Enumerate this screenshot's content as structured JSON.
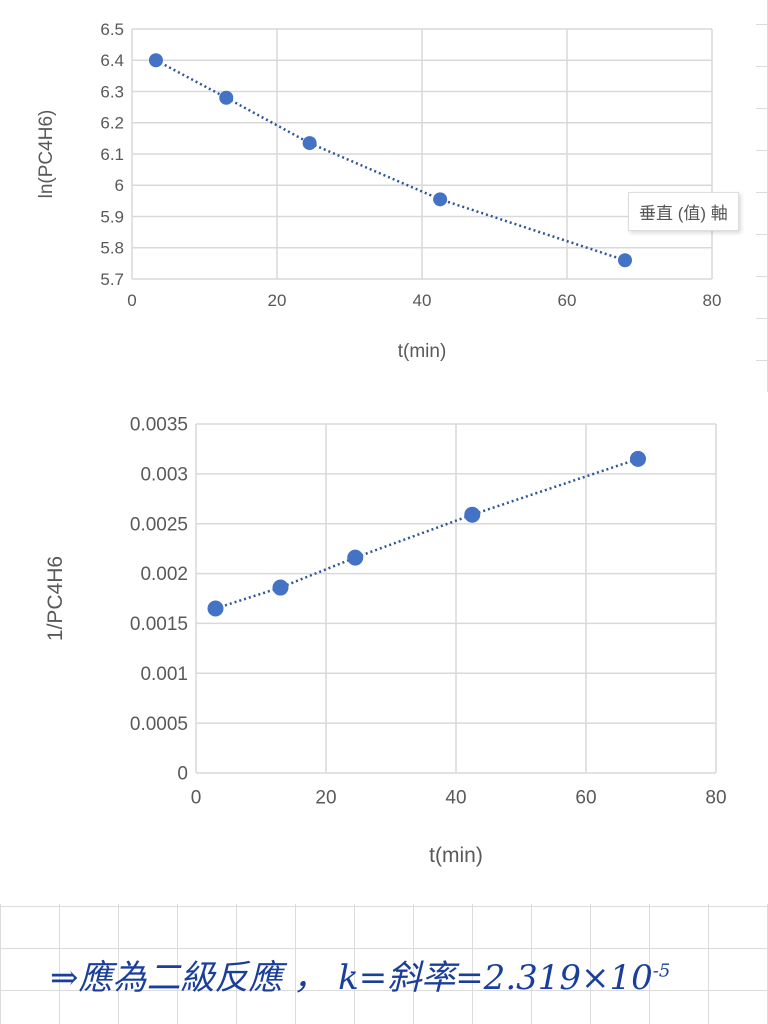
{
  "chart_data": [
    {
      "type": "scatter",
      "title": "",
      "xlabel": "t(min)",
      "ylabel": "ln(PC4H6)",
      "xlim": [
        0,
        80
      ],
      "ylim": [
        5.7,
        6.5
      ],
      "xticks": [
        "0",
        "20",
        "40",
        "60",
        "80"
      ],
      "yticks": [
        "5.7",
        "5.8",
        "5.9",
        "6",
        "6.1",
        "6.2",
        "6.3",
        "6.4",
        "6.5"
      ],
      "x": [
        3.3,
        13,
        24.5,
        42.5,
        68
      ],
      "y": [
        6.4,
        6.28,
        6.135,
        5.955,
        5.76
      ],
      "trendline": "dotted",
      "grid": true,
      "color": "#4472c4"
    },
    {
      "type": "scatter",
      "title": "",
      "xlabel": "t(min)",
      "ylabel": "1/PC4H6",
      "xlim": [
        0,
        80
      ],
      "ylim": [
        0,
        0.0035
      ],
      "xticks": [
        "0",
        "20",
        "40",
        "60",
        "80"
      ],
      "yticks": [
        "0",
        "0.0005",
        "0.001",
        "0.0015",
        "0.002",
        "0.0025",
        "0.003",
        "0.0035"
      ],
      "x": [
        3,
        13,
        24.5,
        42.5,
        68
      ],
      "y": [
        0.00165,
        0.00186,
        0.00216,
        0.00259,
        0.00315
      ],
      "trendline": "linear-dotted",
      "grid": true,
      "color": "#4472c4"
    }
  ],
  "tooltip": "垂直 (值) 軸",
  "note": {
    "text": "⇒應為二級反應 ， k=斜率=2.319×10",
    "exponent": "-5"
  }
}
